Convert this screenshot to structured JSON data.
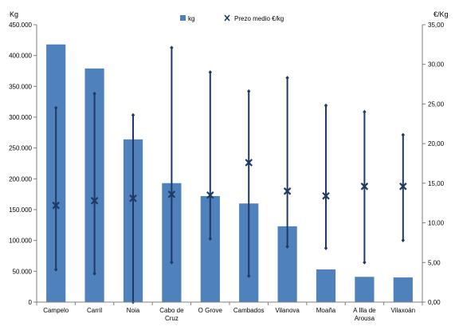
{
  "chart_data": {
    "type": "bar",
    "categories": [
      "Campelo",
      "Carril",
      "Noia",
      "Cabo de Cruz",
      "O Grove",
      "Cambados",
      "Vilanova",
      "Moaña",
      "A Illa de Arousa",
      "Vilaxoán"
    ],
    "category_lines": [
      [
        "Campelo"
      ],
      [
        "Carril"
      ],
      [
        "Noia"
      ],
      [
        "Cabo de",
        "Cruz"
      ],
      [
        "O Grove"
      ],
      [
        "Cambados"
      ],
      [
        "Vilanova"
      ],
      [
        "Moaña"
      ],
      [
        "A Illa de",
        "Arousa"
      ],
      [
        "Vilaxoán"
      ]
    ],
    "left_axis": {
      "unit_label": "Kg",
      "ylim": [
        0,
        450000
      ],
      "ticks": [
        0,
        50000,
        100000,
        150000,
        200000,
        250000,
        300000,
        350000,
        400000,
        450000
      ],
      "tick_labels": [
        "0",
        "50.000",
        "100.000",
        "150.000",
        "200.000",
        "250.000",
        "300.000",
        "350.000",
        "400.000",
        "450.000"
      ]
    },
    "right_axis": {
      "unit_label": "€/Kg",
      "ylim": [
        0,
        35
      ],
      "ticks": [
        0,
        5,
        10,
        15,
        20,
        25,
        30,
        35
      ],
      "tick_labels": [
        "0,00",
        "5,00",
        "10,00",
        "15,00",
        "20,00",
        "25,00",
        "30,00",
        "35,00"
      ]
    },
    "series": [
      {
        "name": "kg",
        "type": "bar",
        "axis": "left",
        "color": "#4f81bd",
        "values": [
          418000,
          379000,
          264000,
          193000,
          172000,
          160000,
          123000,
          53000,
          41000,
          40000
        ]
      },
      {
        "name": "Prezo medio €/kg",
        "type": "range-marker",
        "axis": "right",
        "color": "#1f3864",
        "mean": [
          12.2,
          12.8,
          13.1,
          13.6,
          13.5,
          17.6,
          14.0,
          13.4,
          14.6,
          14.6
        ],
        "min": [
          4.1,
          3.6,
          0.0,
          5.0,
          8.0,
          3.3,
          7.0,
          6.8,
          5.0,
          7.8
        ],
        "max": [
          24.5,
          26.3,
          23.6,
          32.1,
          29.0,
          26.6,
          28.3,
          24.8,
          24.0,
          21.1
        ]
      }
    ],
    "legend": {
      "placement": "top-center",
      "entries": [
        "kg",
        "Prezo medio €/kg"
      ]
    },
    "grid": false
  }
}
